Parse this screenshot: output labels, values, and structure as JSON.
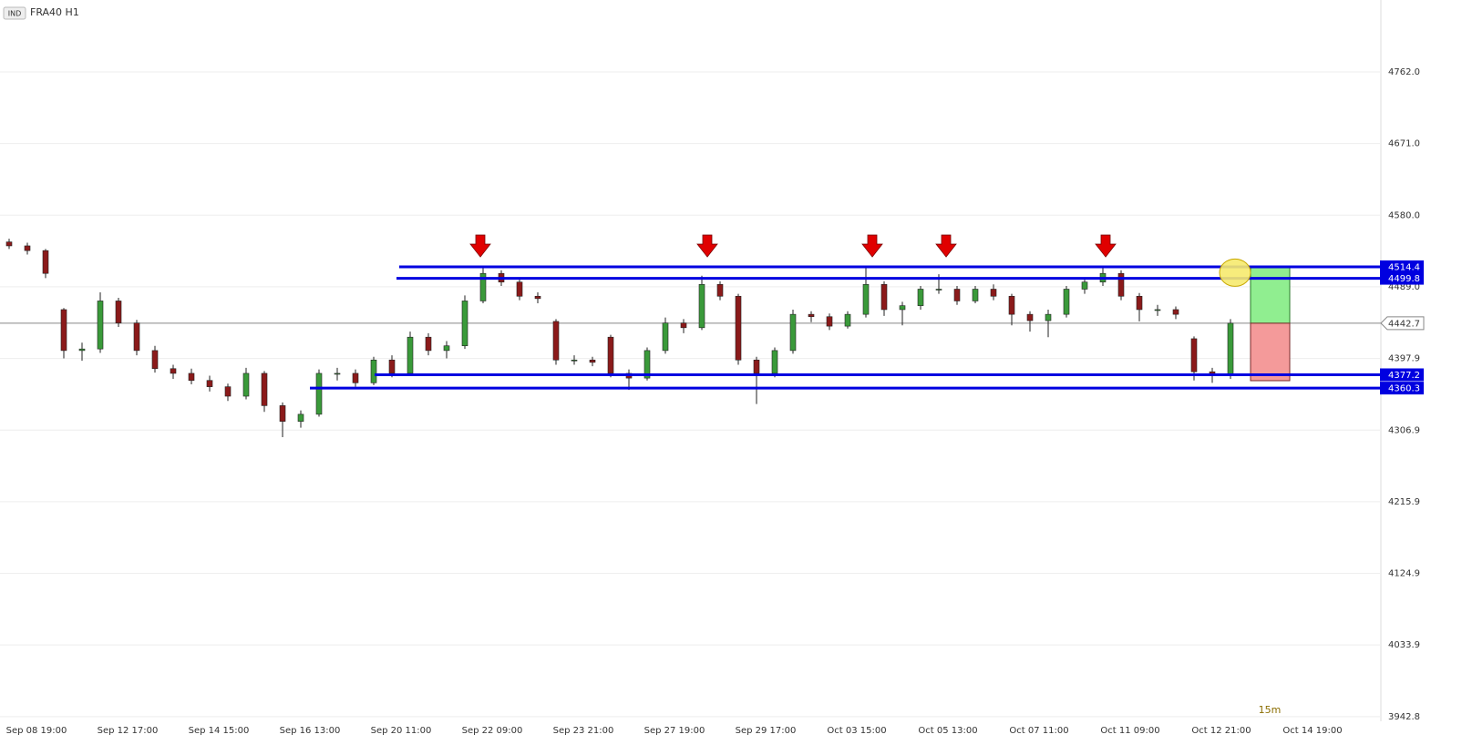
{
  "chart_data": {
    "type": "candlestick",
    "badge": "IND",
    "title": "FRA40 H1",
    "timeframe_note": "15m",
    "grid": true,
    "xlim": [
      -0.4,
      14.7
    ],
    "xticks": [
      {
        "value": 0,
        "label": "Sep 08 19:00"
      },
      {
        "value": 1,
        "label": "Sep 12 17:00"
      },
      {
        "value": 2,
        "label": "Sep 14 15:00"
      },
      {
        "value": 3,
        "label": "Sep 16 13:00"
      },
      {
        "value": 4,
        "label": "Sep 20 11:00"
      },
      {
        "value": 5,
        "label": "Sep 22 09:00"
      },
      {
        "value": 6,
        "label": "Sep 23 21:00"
      },
      {
        "value": 7,
        "label": "Sep 27 19:00"
      },
      {
        "value": 8,
        "label": "Sep 29 17:00"
      },
      {
        "value": 9,
        "label": "Oct 03 15:00"
      },
      {
        "value": 10,
        "label": "Oct 05 13:00"
      },
      {
        "value": 11,
        "label": "Oct 07 11:00"
      },
      {
        "value": 12,
        "label": "Oct 11 09:00"
      },
      {
        "value": 13,
        "label": "Oct 12 21:00"
      },
      {
        "value": 14,
        "label": "Oct 14 19:00"
      }
    ],
    "ylim": [
      3936.9,
      4853.4
    ],
    "yticks": [
      {
        "value": 4762,
        "label": "4762.0"
      },
      {
        "value": 4671,
        "label": "4671.0"
      },
      {
        "value": 4580,
        "label": "4580.0"
      },
      {
        "value": 4489,
        "label": "4489.0"
      },
      4397.9,
      4306.9,
      4215.9,
      4124.9,
      4033.9,
      3942.8
    ],
    "series": [
      {
        "up_color": "#3a9a3a",
        "down_color": "#8b1a1a",
        "x": [
          -0.3,
          -0.1,
          0.1,
          0.3,
          0.5,
          0.7,
          0.9,
          1.1,
          1.3,
          1.5,
          1.7,
          1.9,
          2.1,
          2.3,
          2.5,
          2.7,
          2.9,
          3.1,
          3.3,
          3.5,
          3.7,
          3.9,
          4.1,
          4.3,
          4.5,
          4.7,
          4.9,
          5.1,
          5.3,
          5.5,
          5.7,
          5.9,
          6.1,
          6.3,
          6.5,
          6.7,
          6.9,
          7.1,
          7.3,
          7.5,
          7.7,
          7.9,
          8.1,
          8.3,
          8.5,
          8.7,
          8.9,
          9.1,
          9.3,
          9.5,
          9.7,
          9.9,
          10.1,
          10.3,
          10.5,
          10.7,
          10.9,
          11.1,
          11.3,
          11.5,
          11.7,
          11.9,
          12.1,
          12.3,
          12.5,
          12.7,
          12.9,
          13.1
        ],
        "open": [
          4546,
          4541,
          4535,
          4460,
          4408,
          4410,
          4471,
          4443,
          4408,
          4385,
          4379,
          4370,
          4362,
          4350,
          4379,
          4338,
          4318,
          4327,
          4379,
          4379,
          4367,
          4396,
          4379,
          4425,
          4408,
          4414,
          4471,
          4506,
          4495,
          4477,
          4445,
          4396,
          4396,
          4425,
          4379,
          4373,
          4408,
          4443,
          4437,
          4492,
          4477,
          4396,
          4379,
          4408,
          4454,
          4451,
          4439,
          4454,
          4492,
          4460,
          4465,
          4486,
          4486,
          4471,
          4486,
          4477,
          4454,
          4446,
          4454,
          4486,
          4495,
          4506,
          4477,
          4460,
          4460,
          4423,
          4381,
          4376
        ],
        "high": [
          4550,
          4545,
          4537,
          4462,
          4418,
          4482,
          4475,
          4447,
          4414,
          4390,
          4385,
          4376,
          4366,
          4386,
          4382,
          4342,
          4332,
          4384,
          4386,
          4384,
          4400,
          4402,
          4432,
          4430,
          4420,
          4478,
          4516,
          4510,
          4498,
          4482,
          4448,
          4402,
          4400,
          4428,
          4384,
          4412,
          4450,
          4448,
          4503,
          4496,
          4480,
          4400,
          4412,
          4460,
          4458,
          4455,
          4458,
          4515,
          4496,
          4470,
          4490,
          4505,
          4490,
          4490,
          4492,
          4480,
          4458,
          4460,
          4490,
          4498,
          4514,
          4510,
          4481,
          4466,
          4464,
          4426,
          4386,
          4448
        ],
        "low": [
          4537,
          4530,
          4500,
          4398,
          4395,
          4405,
          4438,
          4402,
          4380,
          4372,
          4365,
          4356,
          4344,
          4346,
          4330,
          4298,
          4310,
          4324,
          4370,
          4362,
          4364,
          4374,
          4376,
          4402,
          4398,
          4410,
          4468,
          4490,
          4472,
          4468,
          4390,
          4390,
          4388,
          4374,
          4358,
          4370,
          4404,
          4430,
          4434,
          4472,
          4390,
          4340,
          4374,
          4404,
          4444,
          4434,
          4436,
          4450,
          4452,
          4440,
          4460,
          4480,
          4466,
          4468,
          4472,
          4440,
          4432,
          4425,
          4450,
          4480,
          4490,
          4472,
          4445,
          4452,
          4448,
          4370,
          4367,
          4372
        ],
        "close": [
          4541,
          4535,
          4506,
          4408,
          4410,
          4471,
          4443,
          4408,
          4385,
          4379,
          4370,
          4362,
          4350,
          4379,
          4338,
          4318,
          4327,
          4379,
          4379,
          4367,
          4396,
          4379,
          4425,
          4408,
          4414,
          4471,
          4506,
          4495,
          4477,
          4474,
          4396,
          4396,
          4393,
          4379,
          4373,
          4408,
          4443,
          4437,
          4492,
          4477,
          4396,
          4379,
          4408,
          4454,
          4451,
          4439,
          4454,
          4492,
          4460,
          4465,
          4486,
          4486,
          4471,
          4486,
          4477,
          4454,
          4446,
          4454,
          4486,
          4495,
          4506,
          4477,
          4460,
          4460,
          4454,
          4381,
          4376,
          4442.7
        ]
      }
    ],
    "last_price": 4442.7,
    "levels": {
      "color": "#0000e0",
      "values": [
        4514.4,
        4499.8,
        4377.2,
        4360.3
      ],
      "starts": [
        3.98,
        3.95,
        3.71,
        3.0
      ]
    },
    "arrows": {
      "color": "#e00000",
      "x": [
        4.87,
        7.36,
        9.17,
        9.98,
        11.73
      ],
      "y": [
        4527,
        4527,
        4527,
        4527,
        4527
      ]
    },
    "highlight": {
      "x": 13.15,
      "y": 4507
    },
    "position": {
      "x": [
        13.32,
        13.75
      ],
      "target": 4514.4,
      "entry": 4442.7,
      "stop": 4369.7
    }
  }
}
